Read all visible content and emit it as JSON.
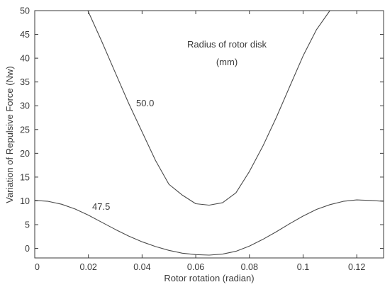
{
  "chart_data": {
    "type": "line",
    "xlabel": "Rotor rotation (radian)",
    "ylabel": "Variation of Repulsive Force (Nw)",
    "xlim": [
      0,
      0.13
    ],
    "ylim": [
      -2,
      50
    ],
    "xticks": [
      0,
      0.02,
      0.04,
      0.06,
      0.08,
      0.1,
      0.12
    ],
    "xtick_labels": [
      "0",
      "0.02",
      "0.04",
      "0.06",
      "0.08",
      "0.1",
      "0.12"
    ],
    "yticks": [
      0,
      5,
      10,
      15,
      20,
      25,
      30,
      35,
      40,
      45,
      50
    ],
    "ytick_labels": [
      "0",
      "5",
      "10",
      "15",
      "20",
      "25",
      "30",
      "35",
      "40",
      "45",
      "50"
    ],
    "grid": false,
    "annotation_line1": "Radius of rotor disk",
    "annotation_line2": "(mm)",
    "series": [
      {
        "name": "50.0",
        "color": "#4a4a4a",
        "x": [
          0.0198,
          0.025,
          0.03,
          0.035,
          0.04,
          0.045,
          0.05,
          0.055,
          0.06,
          0.065,
          0.07,
          0.075,
          0.08,
          0.085,
          0.09,
          0.095,
          0.1,
          0.105,
          0.11
        ],
        "y": [
          50,
          43.5,
          37,
          30.5,
          24.5,
          18.5,
          13.5,
          11.2,
          9.4,
          9.1,
          9.6,
          11.7,
          16.2,
          21.5,
          27.5,
          34,
          40.5,
          46,
          50
        ]
      },
      {
        "name": "47.5",
        "color": "#4a4a4a",
        "x": [
          0,
          0.005,
          0.01,
          0.015,
          0.02,
          0.025,
          0.03,
          0.035,
          0.04,
          0.045,
          0.05,
          0.055,
          0.06,
          0.065,
          0.07,
          0.075,
          0.08,
          0.085,
          0.09,
          0.095,
          0.1,
          0.105,
          0.11,
          0.115,
          0.12,
          0.125,
          0.13
        ],
        "y": [
          10.1,
          9.9,
          9.3,
          8.3,
          7.0,
          5.5,
          4.0,
          2.6,
          1.4,
          0.4,
          -0.4,
          -1.0,
          -1.3,
          -1.4,
          -1.2,
          -0.6,
          0.5,
          1.9,
          3.5,
          5.2,
          6.8,
          8.2,
          9.2,
          9.9,
          10.2,
          10.1,
          9.9
        ]
      }
    ]
  }
}
